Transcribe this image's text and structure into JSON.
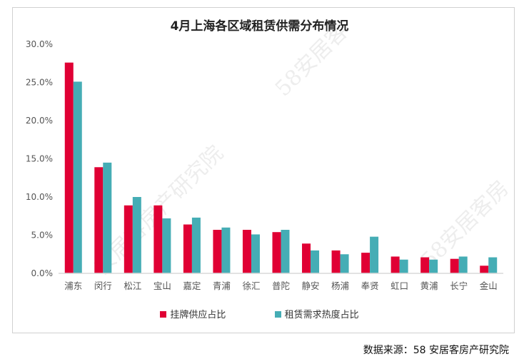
{
  "chart_data": {
    "type": "bar",
    "title": "4月上海各区域租赁供需分布情况",
    "categories": [
      "浦东",
      "闵行",
      "松江",
      "宝山",
      "嘉定",
      "青浦",
      "徐汇",
      "普陀",
      "静安",
      "杨浦",
      "奉贤",
      "虹口",
      "黄浦",
      "长宁",
      "金山"
    ],
    "series": [
      {
        "name": "挂牌供应占比",
        "color": "#e00034",
        "values": [
          27.6,
          13.9,
          8.9,
          8.9,
          6.4,
          5.7,
          5.7,
          5.4,
          3.9,
          3.0,
          2.7,
          2.2,
          2.1,
          1.9,
          1.0
        ]
      },
      {
        "name": "租赁需求热度占比",
        "color": "#45adb5",
        "values": [
          25.1,
          14.5,
          10.0,
          7.2,
          7.3,
          6.0,
          5.1,
          5.7,
          3.0,
          2.5,
          4.8,
          1.8,
          1.8,
          2.2,
          2.1
        ]
      }
    ],
    "yticks": [
      "0.0%",
      "5.0%",
      "10.0%",
      "15.0%",
      "20.0%",
      "25.0%",
      "30.0%"
    ],
    "ylim": [
      0,
      30
    ],
    "legend": "bottom",
    "grid": false
  },
  "source": "数据来源：58 安居客房产研究院",
  "watermark": "58安居客房产研究院"
}
